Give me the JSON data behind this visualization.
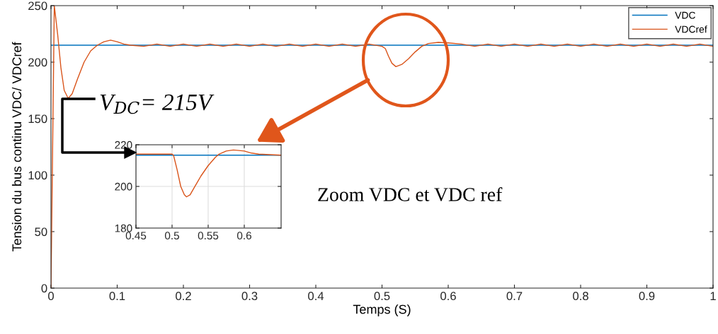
{
  "chart_data": [
    {
      "type": "line",
      "xlabel": "Temps (S)",
      "ylabel": "Tension du bus continu VDC/ VDCref",
      "xlim": [
        0,
        1
      ],
      "ylim": [
        0,
        250
      ],
      "xticks": [
        0,
        0.1,
        0.2,
        0.3,
        0.4,
        0.5,
        0.6,
        0.7,
        0.8,
        0.9,
        1
      ],
      "yticks": [
        0,
        50,
        100,
        150,
        200,
        250
      ],
      "grid": false,
      "legend": "top right",
      "series": [
        {
          "name": "VDC",
          "color": "#0072bd",
          "x": [
            0,
            1
          ],
          "values": [
            215,
            215
          ]
        },
        {
          "name": "VDCref",
          "color": "#d95319",
          "x": [
            0,
            0.005,
            0.01,
            0.015,
            0.02,
            0.026,
            0.032,
            0.04,
            0.05,
            0.06,
            0.07,
            0.08,
            0.09,
            0.1,
            0.11,
            0.12,
            0.14,
            0.16,
            0.18,
            0.2,
            0.22,
            0.24,
            0.26,
            0.28,
            0.3,
            0.32,
            0.34,
            0.36,
            0.38,
            0.4,
            0.42,
            0.44,
            0.46,
            0.48,
            0.5,
            0.505,
            0.51,
            0.515,
            0.521,
            0.53,
            0.54,
            0.55,
            0.56,
            0.57,
            0.585,
            0.6,
            0.62,
            0.64,
            0.66,
            0.68,
            0.7,
            0.72,
            0.74,
            0.76,
            0.78,
            0.8,
            0.82,
            0.84,
            0.86,
            0.88,
            0.9,
            0.92,
            0.94,
            0.96,
            0.98,
            1
          ],
          "values": [
            0,
            250,
            225,
            195,
            175,
            168,
            172,
            185,
            200,
            210,
            215,
            218,
            219.5,
            218,
            216,
            215,
            214,
            216,
            214,
            216,
            214,
            216,
            214,
            216,
            214,
            216,
            214,
            216,
            214,
            216,
            214,
            216,
            214,
            216,
            214,
            212,
            205,
            199,
            196,
            198,
            203,
            209,
            214,
            216.5,
            217.5,
            217,
            216,
            214,
            216,
            214,
            216,
            214,
            216,
            214,
            216,
            214,
            216,
            214,
            216,
            214,
            216,
            214,
            216,
            214,
            216,
            214
          ]
        }
      ],
      "annotations": [
        "V$_{DC}$= 215V",
        "Zoom VDC et VDC ref"
      ]
    },
    {
      "type": "line",
      "xlim": [
        0.45,
        0.651
      ],
      "ylim": [
        180,
        220
      ],
      "xticks": [
        0.45,
        0.5,
        0.55,
        0.6
      ],
      "yticks": [
        180,
        200,
        220
      ],
      "grid": true,
      "legend": false,
      "series": [
        {
          "color": "#0072bd",
          "x": [
            0.45,
            0.651
          ],
          "values": [
            215,
            215
          ]
        },
        {
          "color": "#d95319",
          "x": [
            0.45,
            0.5,
            0.502,
            0.507,
            0.512,
            0.517,
            0.52,
            0.525,
            0.53,
            0.54,
            0.55,
            0.56,
            0.565,
            0.575,
            0.585,
            0.6,
            0.61,
            0.62,
            0.651
          ],
          "values": [
            215.5,
            215.5,
            215,
            208,
            200,
            196,
            195,
            196,
            199,
            205,
            210,
            214,
            215.5,
            217,
            217.5,
            217,
            216,
            215.5,
            215
          ]
        }
      ]
    }
  ]
}
